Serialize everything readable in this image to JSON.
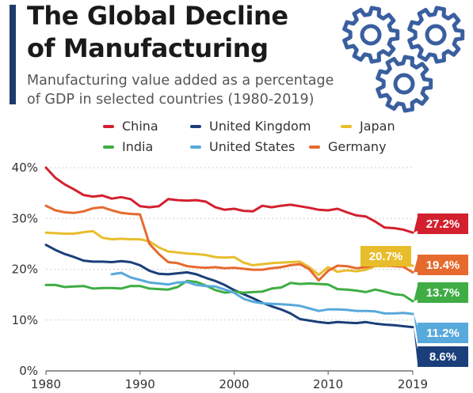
{
  "header": {
    "title_line1": "The Global Decline",
    "title_line2": "of Manufacturing",
    "subtitle_line1": "Manufacturing value added as a percentage",
    "subtitle_line2": "of GDP in selected countries (1980-2019)"
  },
  "icons": {
    "gears": "gear-icon"
  },
  "colors": {
    "accent": "#1f3b6b"
  },
  "chart_data": {
    "type": "line",
    "xlim": [
      1980,
      2019
    ],
    "ylim": [
      0,
      40
    ],
    "x_ticks": [
      1980,
      1990,
      2000,
      2010,
      2019
    ],
    "y_ticks": [
      0,
      10,
      20,
      30,
      40
    ],
    "y_tick_labels": [
      "0%",
      "10%",
      "20%",
      "30%",
      "40%"
    ],
    "grid": true,
    "legend_position": "top",
    "series": [
      {
        "name": "China",
        "color": "#d3202f",
        "end_label": "27.2%",
        "x": [
          1980,
          1981,
          1982,
          1983,
          1984,
          1985,
          1986,
          1987,
          1988,
          1989,
          1990,
          1991,
          1992,
          1993,
          1994,
          1995,
          1996,
          1997,
          1998,
          1999,
          2000,
          2001,
          2002,
          2003,
          2004,
          2005,
          2006,
          2007,
          2008,
          2009,
          2010,
          2011,
          2012,
          2013,
          2014,
          2015,
          2016,
          2017,
          2018,
          2019
        ],
        "y": [
          40.0,
          38.0,
          36.7,
          35.7,
          34.6,
          34.3,
          34.5,
          33.9,
          34.2,
          33.8,
          32.4,
          32.2,
          32.4,
          33.8,
          33.6,
          33.5,
          33.6,
          33.3,
          32.2,
          31.7,
          31.9,
          31.5,
          31.4,
          32.5,
          32.2,
          32.5,
          32.7,
          32.4,
          32.1,
          31.7,
          31.6,
          31.9,
          31.2,
          30.6,
          30.4,
          29.4,
          28.2,
          28.1,
          27.8,
          27.2
        ]
      },
      {
        "name": "United Kingdom",
        "color": "#1a3f7a",
        "end_label": "8.6%",
        "x": [
          1980,
          1981,
          1982,
          1983,
          1984,
          1985,
          1986,
          1987,
          1988,
          1989,
          1990,
          1991,
          1992,
          1993,
          1994,
          1995,
          1996,
          1997,
          1998,
          1999,
          2000,
          2001,
          2002,
          2003,
          2004,
          2005,
          2006,
          2007,
          2008,
          2009,
          2010,
          2011,
          2012,
          2013,
          2014,
          2015,
          2016,
          2017,
          2018,
          2019
        ],
        "y": [
          24.8,
          23.8,
          23.0,
          22.4,
          21.7,
          21.5,
          21.5,
          21.4,
          21.6,
          21.4,
          20.8,
          19.7,
          19.1,
          19.0,
          19.2,
          19.4,
          19.0,
          18.3,
          17.7,
          16.9,
          15.9,
          15.1,
          14.3,
          13.4,
          12.7,
          12.1,
          11.3,
          10.2,
          9.9,
          9.6,
          9.4,
          9.6,
          9.5,
          9.4,
          9.6,
          9.3,
          9.1,
          9.0,
          8.8,
          8.6
        ]
      },
      {
        "name": "Japan",
        "color": "#e8bd2c",
        "end_label": "20.7%",
        "x": [
          1980,
          1981,
          1982,
          1983,
          1984,
          1985,
          1986,
          1987,
          1988,
          1989,
          1990,
          1991,
          1992,
          1993,
          1994,
          1995,
          1996,
          1997,
          1998,
          1999,
          2000,
          2001,
          2002,
          2003,
          2004,
          2005,
          2006,
          2007,
          2008,
          2009,
          2010,
          2011,
          2012,
          2013,
          2014,
          2015,
          2016,
          2017,
          2018,
          2019
        ],
        "y": [
          27.2,
          27.1,
          27.0,
          27.0,
          27.3,
          27.5,
          26.2,
          25.9,
          26.0,
          25.9,
          25.9,
          25.5,
          24.3,
          23.5,
          23.3,
          23.1,
          23.0,
          22.8,
          22.4,
          22.3,
          22.4,
          21.3,
          20.8,
          21.0,
          21.2,
          21.3,
          21.4,
          21.5,
          20.4,
          18.9,
          20.4,
          19.5,
          19.8,
          19.6,
          19.9,
          20.6,
          20.6,
          20.7,
          20.7,
          20.7
        ]
      },
      {
        "name": "India",
        "color": "#3fad44",
        "end_label": "13.7%",
        "x": [
          1980,
          1981,
          1982,
          1983,
          1984,
          1985,
          1986,
          1987,
          1988,
          1989,
          1990,
          1991,
          1992,
          1993,
          1994,
          1995,
          1996,
          1997,
          1998,
          1999,
          2000,
          2001,
          2002,
          2003,
          2004,
          2005,
          2006,
          2007,
          2008,
          2009,
          2010,
          2011,
          2012,
          2013,
          2014,
          2015,
          2016,
          2017,
          2018,
          2019
        ],
        "y": [
          16.9,
          16.9,
          16.5,
          16.6,
          16.7,
          16.2,
          16.3,
          16.3,
          16.2,
          16.7,
          16.7,
          16.2,
          16.1,
          16.0,
          16.5,
          17.7,
          17.5,
          16.8,
          15.9,
          15.4,
          15.6,
          15.4,
          15.5,
          15.6,
          16.2,
          16.4,
          17.3,
          17.1,
          17.2,
          17.1,
          17.0,
          16.1,
          16.0,
          15.8,
          15.5,
          16.0,
          15.6,
          15.1,
          14.9,
          13.7
        ]
      },
      {
        "name": "United States",
        "color": "#58a9dc",
        "end_label": "11.2%",
        "x": [
          1987,
          1988,
          1989,
          1990,
          1991,
          1992,
          1993,
          1994,
          1995,
          1996,
          1997,
          1998,
          1999,
          2000,
          2001,
          2002,
          2003,
          2004,
          2005,
          2006,
          2007,
          2008,
          2009,
          2010,
          2011,
          2012,
          2013,
          2014,
          2015,
          2016,
          2017,
          2018,
          2019
        ],
        "y": [
          19.0,
          19.3,
          18.4,
          17.9,
          17.4,
          17.2,
          17.0,
          17.4,
          17.5,
          16.9,
          16.7,
          16.6,
          16.0,
          15.4,
          14.2,
          13.6,
          13.3,
          13.2,
          13.1,
          13.0,
          12.8,
          12.3,
          11.8,
          12.1,
          12.1,
          12.0,
          11.8,
          11.8,
          11.7,
          11.3,
          11.3,
          11.4,
          11.2
        ]
      },
      {
        "name": "Germany",
        "color": "#e66a2e",
        "end_label": "19.4%",
        "x": [
          1980,
          1981,
          1982,
          1983,
          1984,
          1985,
          1986,
          1987,
          1988,
          1989,
          1990,
          1991,
          1992,
          1993,
          1994,
          1995,
          1996,
          1997,
          1998,
          1999,
          2000,
          2001,
          2002,
          2003,
          2004,
          2005,
          2006,
          2007,
          2008,
          2009,
          2010,
          2011,
          2012,
          2013,
          2014,
          2015,
          2016,
          2017,
          2018,
          2019
        ],
        "y": [
          32.5,
          31.6,
          31.2,
          31.1,
          31.4,
          32.0,
          32.2,
          31.6,
          31.1,
          30.9,
          30.8,
          25.0,
          23.0,
          21.4,
          21.2,
          20.6,
          20.4,
          20.3,
          20.4,
          20.2,
          20.3,
          20.1,
          19.9,
          19.9,
          20.2,
          20.4,
          20.8,
          21.0,
          20.0,
          17.8,
          19.7,
          20.7,
          20.6,
          20.2,
          20.4,
          20.8,
          20.8,
          20.6,
          20.5,
          19.4
        ]
      }
    ]
  }
}
